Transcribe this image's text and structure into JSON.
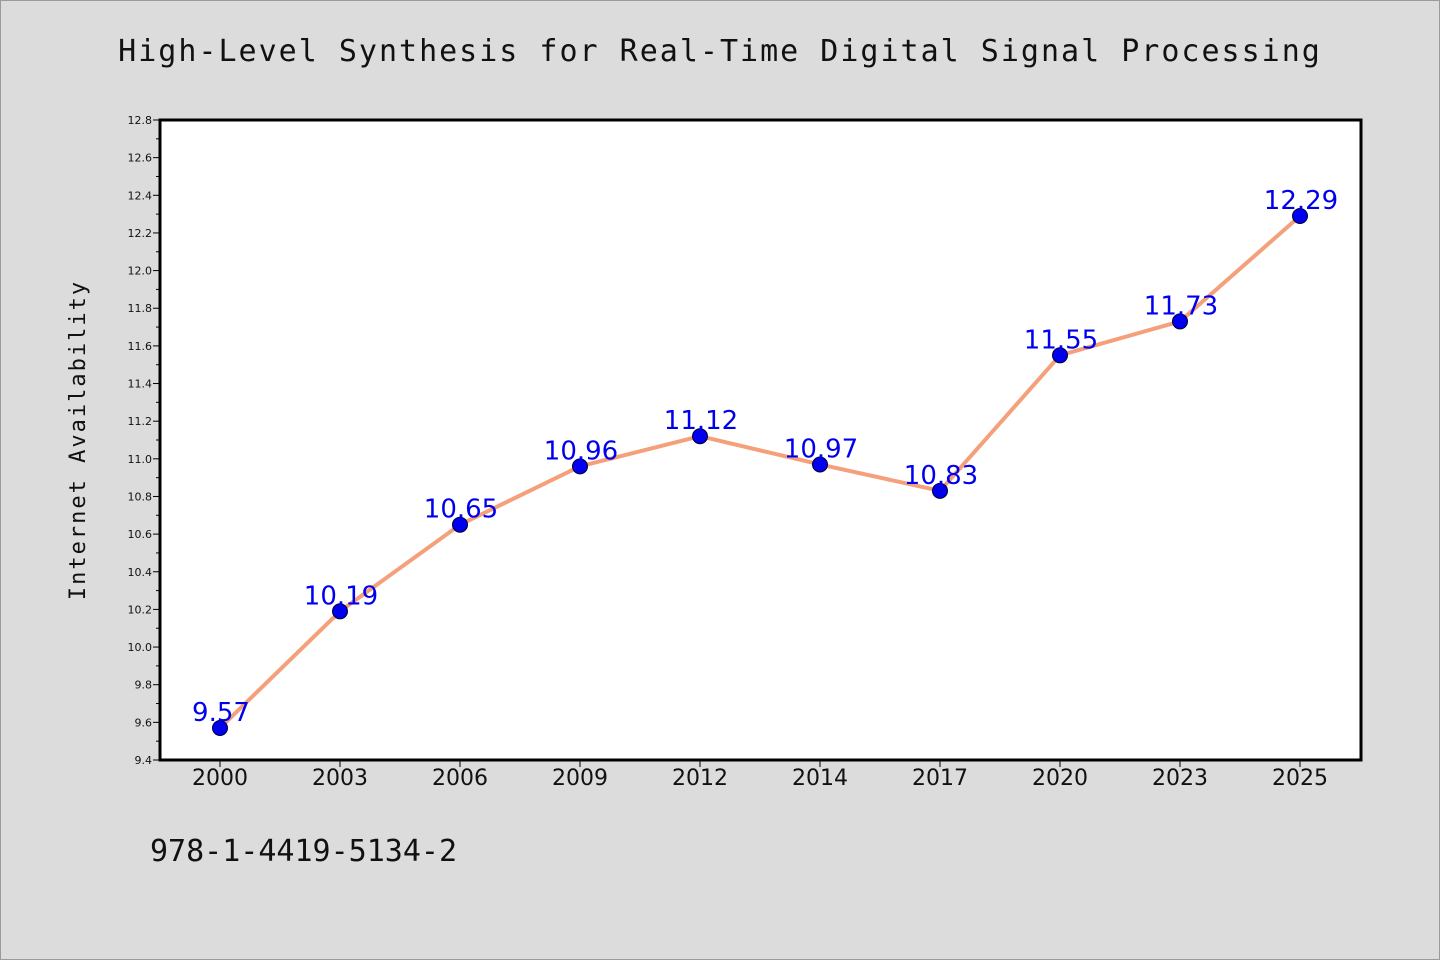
{
  "chart_data": {
    "type": "line",
    "title": "High-Level Synthesis for Real-Time Digital Signal Processing",
    "xlabel": "",
    "ylabel": "Internet Availability",
    "categories": [
      "2000",
      "2003",
      "2006",
      "2009",
      "2012",
      "2014",
      "2017",
      "2020",
      "2023",
      "2025"
    ],
    "values": [
      9.57,
      10.19,
      10.65,
      10.96,
      11.12,
      10.97,
      10.83,
      11.55,
      11.73,
      12.29
    ],
    "data_labels": [
      "9.57",
      "10.19",
      "10.65",
      "10.96",
      "11.12",
      "10.97",
      "10.83",
      "11.55",
      "11.73",
      "12.29"
    ],
    "ylim": [
      9.4,
      12.8
    ],
    "yticks": [
      "9.4",
      "9.6",
      "9.8",
      "10.0",
      "10.2",
      "10.4",
      "10.6",
      "10.8",
      "11.0",
      "11.2",
      "11.4",
      "11.6",
      "11.8",
      "12.0",
      "12.2",
      "12.4",
      "12.6",
      "12.8"
    ],
    "grid": false,
    "legend": "none",
    "colors": {
      "line": "#f4a07a",
      "marker": "#0000ee",
      "label": "#0000ee",
      "background": "#dcdcdc",
      "plot_background": "#ffffff"
    }
  },
  "footer": {
    "code": "978-1-4419-5134-2"
  }
}
